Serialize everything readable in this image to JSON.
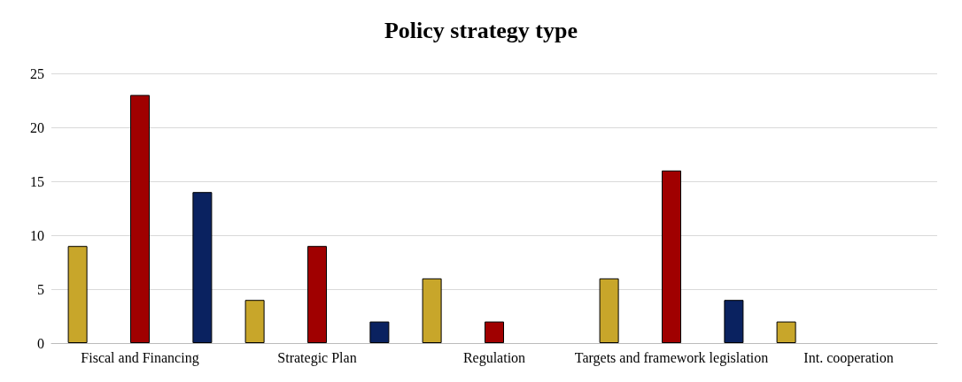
{
  "chart_data": {
    "type": "bar",
    "title": "Policy strategy type",
    "categories": [
      "Fiscal and Financing",
      "Strategic Plan",
      "Regulation",
      "Targets and framework legislation",
      "Int. cooperation"
    ],
    "series": [
      {
        "color": "#c8a62a",
        "values": [
          9,
          4,
          6,
          6,
          2
        ]
      },
      {
        "color": "#a00000",
        "values": [
          23,
          9,
          2,
          16,
          null
        ]
      },
      {
        "color": "#0a2260",
        "values": [
          14,
          2,
          null,
          4,
          null
        ]
      }
    ],
    "ylim": [
      0,
      25
    ],
    "yticks": [
      0,
      5,
      10,
      15,
      20,
      25
    ],
    "grid": "y"
  }
}
